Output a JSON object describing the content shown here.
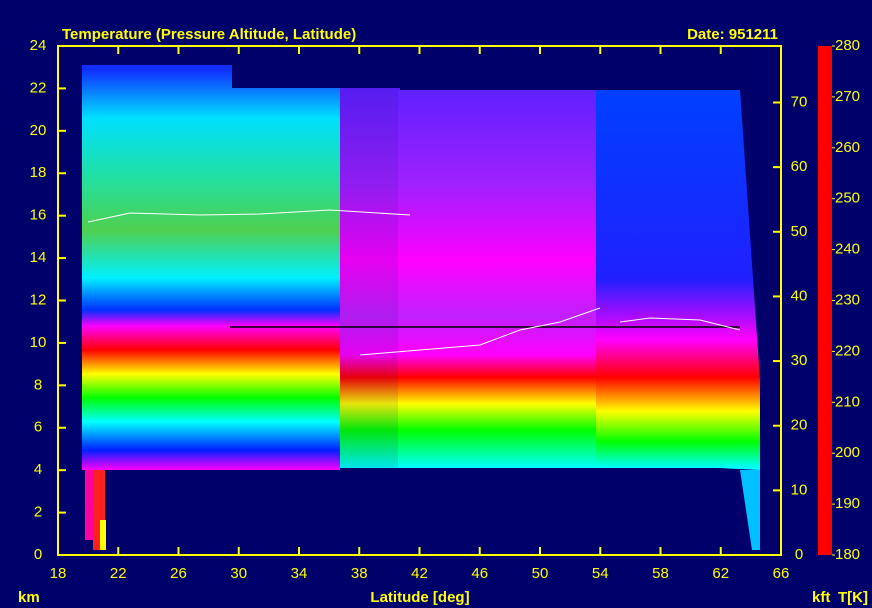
{
  "chart_data": {
    "type": "heatmap",
    "title": "Temperature (Pressure Altitude, Latitude)",
    "annotation": "Date: 951211",
    "x_label": "Latitude [deg]",
    "y_label": "km",
    "y2_label": "kft",
    "xlim": [
      18,
      66
    ],
    "xticks": [
      18,
      22,
      26,
      30,
      34,
      38,
      42,
      46,
      50,
      54,
      58,
      62,
      66
    ],
    "ylim": [
      0,
      24
    ],
    "yticks": [
      0,
      2,
      4,
      6,
      8,
      10,
      12,
      14,
      16,
      18,
      20,
      22,
      24
    ],
    "y2lim": [
      0,
      78.74
    ],
    "y2ticks": [
      0,
      10,
      20,
      30,
      40,
      50,
      60,
      70
    ],
    "colorbar": {
      "label": "T[K]",
      "lim": [
        180,
        280
      ],
      "ticks": [
        180,
        190,
        200,
        210,
        220,
        230,
        240,
        250,
        260,
        270,
        280
      ],
      "stops": [
        {
          "value": 180,
          "color": "#ff0000"
        },
        {
          "value": 185,
          "color": "#ff9000"
        },
        {
          "value": 190,
          "color": "#ffff00"
        },
        {
          "value": 195,
          "color": "#a0ff00"
        },
        {
          "value": 200,
          "color": "#00ff00"
        },
        {
          "value": 205,
          "color": "#00e0c0"
        },
        {
          "value": 210,
          "color": "#0020ff"
        },
        {
          "value": 215,
          "color": "#8000ff"
        },
        {
          "value": 220,
          "color": "#ff00ff"
        },
        {
          "value": 225,
          "color": "#ff0080"
        },
        {
          "value": 230,
          "color": "#ff0000"
        },
        {
          "value": 235,
          "color": "#ff9000"
        },
        {
          "value": 240,
          "color": "#ffff00"
        },
        {
          "value": 245,
          "color": "#80ff00"
        },
        {
          "value": 250,
          "color": "#00ff40"
        },
        {
          "value": 255,
          "color": "#00ffff"
        },
        {
          "value": 260,
          "color": "#0030ff"
        },
        {
          "value": 265,
          "color": "#8000ff"
        },
        {
          "value": 270,
          "color": "#ff00ff"
        },
        {
          "value": 275,
          "color": "#ff0080"
        },
        {
          "value": 280,
          "color": "#ff0000"
        }
      ]
    },
    "frame_color": "#ffff00"
  }
}
